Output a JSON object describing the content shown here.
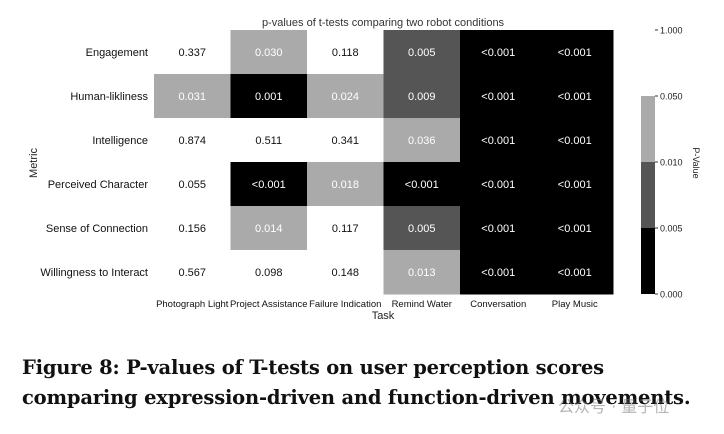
{
  "chart_data": {
    "type": "heatmap",
    "title": "p-values of t-tests comparing two robot conditions",
    "xlabel": "Task",
    "ylabel": "Metric",
    "x_categories": [
      "Photograph Light",
      "Project Assistance",
      "Failure Indication",
      "Remind Water",
      "Conversation",
      "Play Music"
    ],
    "y_categories": [
      "Engagement",
      "Human-likliness",
      "Intelligence",
      "Perceived Character",
      "Sense of Connection",
      "Willingness to Interact"
    ],
    "cells": [
      [
        "0.337",
        "0.030",
        "0.118",
        "0.005",
        "<0.001",
        "<0.001"
      ],
      [
        "0.031",
        "0.001",
        "0.024",
        "0.009",
        "<0.001",
        "<0.001"
      ],
      [
        "0.874",
        "0.511",
        "0.341",
        "0.036",
        "<0.001",
        "<0.001"
      ],
      [
        "0.055",
        "<0.001",
        "0.018",
        "<0.001",
        "<0.001",
        "<0.001"
      ],
      [
        "0.156",
        "0.014",
        "0.117",
        "0.005",
        "<0.001",
        "<0.001"
      ],
      [
        "0.567",
        "0.098",
        "0.148",
        "0.013",
        "<0.001",
        "<0.001"
      ]
    ],
    "colorbar": {
      "label": "P-Value",
      "ticks": [
        "1.000",
        "0.050",
        "0.010",
        "0.005",
        "0.000"
      ],
      "bins": [
        {
          "min": 0.0,
          "max": 0.005,
          "color": "#000000"
        },
        {
          "min": 0.005,
          "max": 0.01,
          "color": "#555555"
        },
        {
          "min": 0.01,
          "max": 0.05,
          "color": "#aaaaaa"
        },
        {
          "min": 0.05,
          "max": 1.0,
          "color": "#ffffff"
        }
      ]
    }
  },
  "caption": "Figure 8: P-values of T-tests on user perception scores comparing expression-driven and function-driven movements.",
  "watermark": "公众号 · 量子位"
}
